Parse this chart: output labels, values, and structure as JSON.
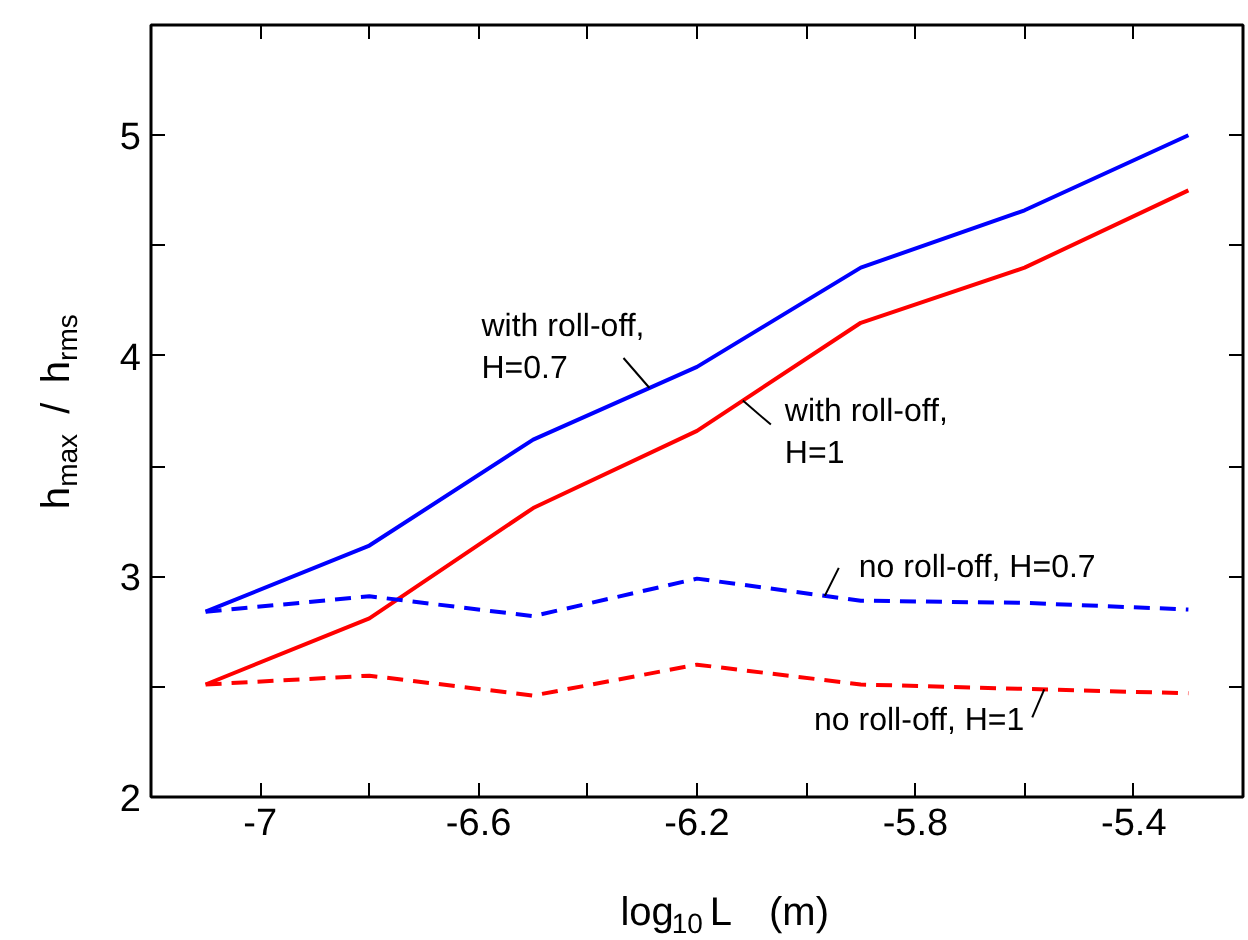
{
  "chart_data": {
    "type": "line",
    "xlabel": "log$_{10}$ L  (m)",
    "ylabel": "h$_{max}$ / h$_{rms}$",
    "x": [
      -7.1,
      -6.8,
      -6.5,
      -6.2,
      -5.9,
      -5.6,
      -5.3
    ],
    "xlim": [
      -7.2,
      -5.2
    ],
    "ylim": [
      2,
      5.5
    ],
    "xticks": [
      -7,
      {
        "value": -6.8,
        "label": null
      },
      -6.6,
      {
        "value": -6.4,
        "label": null
      },
      -6.2,
      {
        "value": -6.0,
        "label": null
      },
      -5.8,
      {
        "value": -5.6,
        "label": null
      },
      -5.4
    ],
    "yticks": [
      2,
      {
        "value": 2.5,
        "label": null
      },
      3,
      {
        "value": 3.5,
        "label": null
      },
      4,
      {
        "value": 4.5,
        "label": null
      },
      5
    ],
    "grid": false,
    "legend": false,
    "marker": "none",
    "series": [
      {
        "name": "with roll-off, H=0.7",
        "color": "#0000ff",
        "line_style": "solid",
        "values": [
          2.84,
          3.14,
          3.62,
          3.95,
          4.4,
          4.66,
          5.0
        ]
      },
      {
        "name": "with roll-off, H=1",
        "color": "#ff0000",
        "line_style": "solid",
        "values": [
          2.51,
          2.81,
          3.31,
          3.66,
          4.15,
          4.4,
          4.75
        ]
      },
      {
        "name": "no roll-off, H=0.7",
        "color": "#0000ff",
        "line_style": "dashed",
        "values": [
          2.84,
          2.91,
          2.82,
          2.99,
          2.89,
          2.88,
          2.85
        ]
      },
      {
        "name": "no roll-off, H=1",
        "color": "#ff0000",
        "line_style": "dashed",
        "values": [
          2.51,
          2.55,
          2.46,
          2.6,
          2.51,
          2.49,
          2.47
        ]
      }
    ]
  }
}
